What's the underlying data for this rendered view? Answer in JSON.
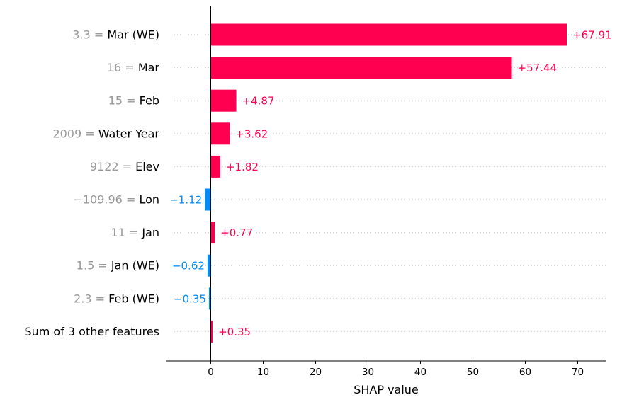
{
  "chart_data": {
    "type": "bar",
    "orientation": "horizontal",
    "xlabel": "SHAP value",
    "xlim": [
      -8.5,
      75
    ],
    "xticks": [
      0,
      10,
      20,
      30,
      40,
      50,
      60,
      70
    ],
    "grid": "dotted horizontal guide lines",
    "colors": {
      "positive": "#ff0051",
      "negative": "#008bfb",
      "feature_value": "#999999"
    },
    "features": [
      {
        "value_text": "3.3 = ",
        "name": "Mar (WE)",
        "shap": 67.91,
        "label": "+67.91"
      },
      {
        "value_text": "16 = ",
        "name": "Mar",
        "shap": 57.44,
        "label": "+57.44"
      },
      {
        "value_text": "15 = ",
        "name": "Feb",
        "shap": 4.87,
        "label": "+4.87"
      },
      {
        "value_text": "2009 = ",
        "name": "Water Year",
        "shap": 3.62,
        "label": "+3.62"
      },
      {
        "value_text": "9122 = ",
        "name": "Elev",
        "shap": 1.82,
        "label": "+1.82"
      },
      {
        "value_text": "−109.96 = ",
        "name": "Lon",
        "shap": -1.12,
        "label": "−1.12"
      },
      {
        "value_text": "11 = ",
        "name": "Jan",
        "shap": 0.77,
        "label": "+0.77"
      },
      {
        "value_text": "1.5 = ",
        "name": "Jan (WE)",
        "shap": -0.62,
        "label": "−0.62"
      },
      {
        "value_text": "2.3 = ",
        "name": "Feb (WE)",
        "shap": -0.35,
        "label": "−0.35"
      },
      {
        "value_text": "",
        "name": "Sum of 3 other features",
        "shap": 0.35,
        "label": "+0.35"
      }
    ]
  }
}
